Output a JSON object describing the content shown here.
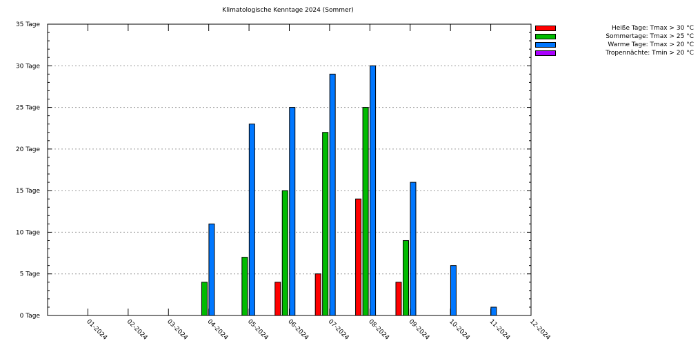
{
  "chart_data": {
    "type": "bar",
    "title": "Klimatologische Kenntage 2024 (Sommer)",
    "categories": [
      "01-2024",
      "02-2024",
      "03-2024",
      "04-2024",
      "05-2024",
      "06-2024",
      "07-2024",
      "08-2024",
      "09-2024",
      "10-2024",
      "11-2024",
      "12-2024"
    ],
    "series": [
      {
        "name": "Heiße Tage: Tmax > 30 °C",
        "color": "#ff0000",
        "values": [
          0,
          0,
          0,
          0,
          0,
          4,
          5,
          14,
          4,
          0,
          0,
          0
        ]
      },
      {
        "name": "Sommertage: Tmax > 25 °C",
        "color": "#00bb00",
        "values": [
          0,
          0,
          0,
          4,
          7,
          15,
          22,
          25,
          9,
          0,
          0,
          0
        ]
      },
      {
        "name": "Warme Tage: Tmax > 20 °C",
        "color": "#0077ff",
        "values": [
          0,
          0,
          0,
          11,
          23,
          25,
          29,
          30,
          16,
          6,
          1,
          0
        ]
      },
      {
        "name": "Tropennächte: Tmin > 20 °C",
        "color": "#aa00ff",
        "values": [
          0,
          0,
          0,
          0,
          0,
          0,
          0,
          0,
          0,
          0,
          0,
          0
        ]
      }
    ],
    "ylim": [
      0,
      35
    ],
    "yticks": [
      0,
      5,
      10,
      15,
      20,
      25,
      30,
      35
    ],
    "ytick_labels": [
      "0 Tage",
      "5 Tage",
      "10 Tage",
      "15 Tage",
      "20 Tage",
      "25 Tage",
      "30 Tage",
      "35 Tage"
    ],
    "grid": true,
    "legend_position": "top-right"
  }
}
